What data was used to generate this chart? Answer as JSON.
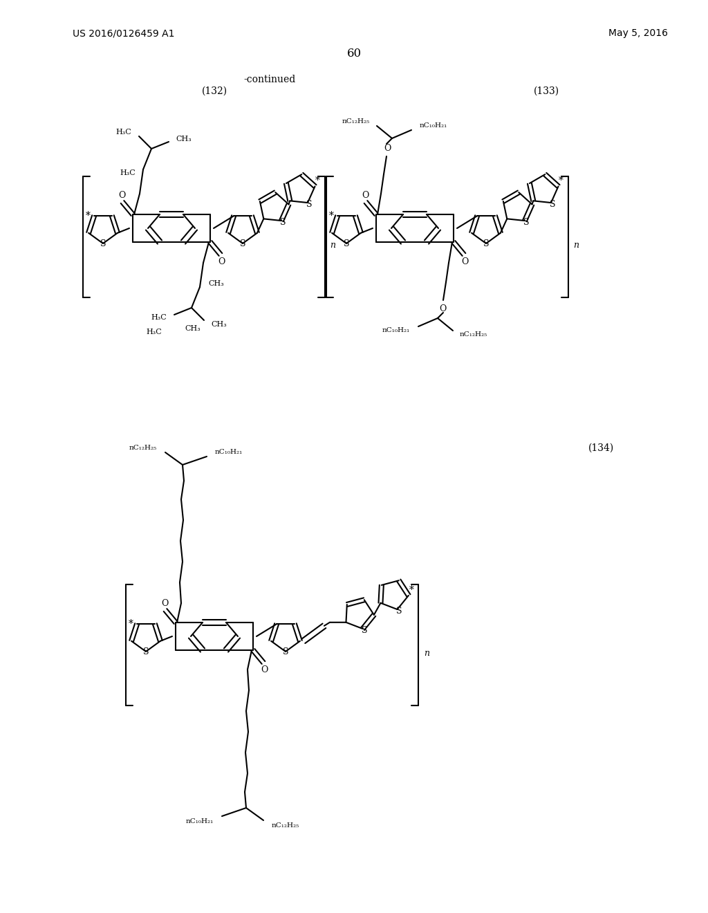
{
  "background_color": "#ffffff",
  "page_number": "60",
  "patent_number": "US 2016/0126459 A1",
  "patent_date": "May 5, 2016",
  "continued_label": "-continued",
  "compound_132_label": "(132)",
  "compound_133_label": "(133)",
  "compound_134_label": "(134)",
  "figsize": [
    10.24,
    13.2
  ],
  "dpi": 100
}
